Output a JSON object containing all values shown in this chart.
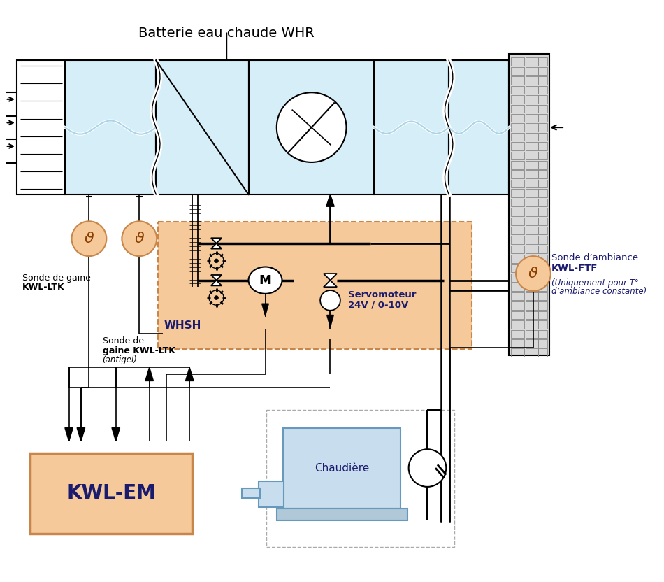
{
  "title": "Batterie eau chaude WHR",
  "bg_color": "#ffffff",
  "duct_fill": "#d6eef8",
  "orange_fill": "#f5c99a",
  "orange_stroke": "#c8864a",
  "sensor_fill": "#f5c99a",
  "sensor_stroke": "#c8864a",
  "chaudiere_fill": "#c8dded",
  "kwlem_fill": "#f5c99a",
  "dark_color": "#1a1a6e",
  "black": "#000000",
  "gray_pipe": "#888888",
  "label_title": "Batterie eau chaude WHR",
  "label_kwlltk": "Sonde de gaine",
  "label_kwlltk_bold": "KWL-LTK",
  "label_kwlltk2a": "Sonde de",
  "label_kwlltk2b": "gaine KWL-LTK",
  "label_kwlltk2c": "(antigel)",
  "label_whsh": "WHSH",
  "label_servo1": "Servomoteur",
  "label_servo2": "24V / 0-10V",
  "label_sonde_amb1": "Sonde d’ambiance",
  "label_sonde_amb2": "KWL-FTF",
  "label_amb_sub1": "(Uniquement pour T°",
  "label_amb_sub2": "d’ambiance constante)",
  "label_chaudiere": "Chaudière",
  "label_kwlem": "KWL-EM",
  "label_m": "M"
}
